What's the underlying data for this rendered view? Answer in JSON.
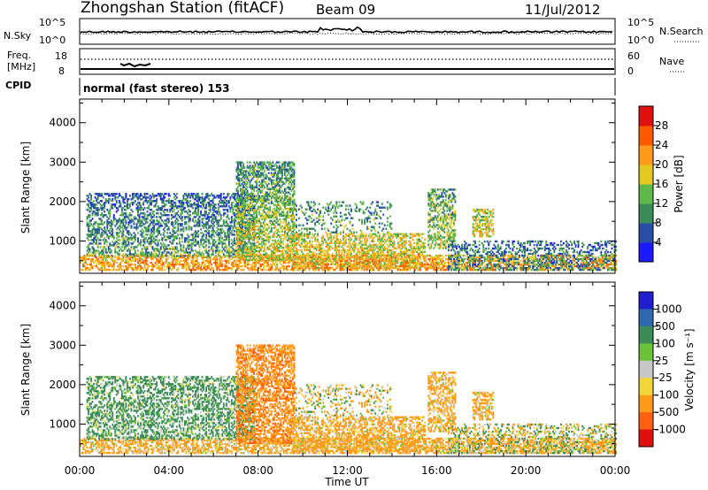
{
  "header": {
    "station": "Zhongshan Station (fitACF)",
    "beam": "Beam 09",
    "date": "11/Jul/2012"
  },
  "strip_panels": {
    "nsky_label": "N.Sky",
    "nsearch_label": "N.Search",
    "nsky_ticks": [
      "10^5",
      "10^0"
    ],
    "nsearch_ticks": [
      "10^5",
      "10^0"
    ],
    "freq_label_line1": "Freq.",
    "freq_label_line2": "[MHz]",
    "freq_ticks": [
      "18",
      "8"
    ],
    "nave_label": "Nave",
    "nave_ticks": [
      "60",
      "0"
    ],
    "cpid_label": "CPID",
    "cpid_text": "normal (fast stereo) 153"
  },
  "colors": {
    "power_scale": [
      "#1a1aff",
      "#2a4fa8",
      "#3c8c5a",
      "#5fb84a",
      "#e2c820",
      "#ff9a1a",
      "#ff5a00",
      "#e01010"
    ],
    "velocity_scale": [
      "#1f1fd0",
      "#2f6ab0",
      "#3c8c5a",
      "#6cc23a",
      "#c8c8c8",
      "#f2d63a",
      "#ff9a1a",
      "#ff6010",
      "#e01010"
    ]
  },
  "chart_data": [
    {
      "type": "heatmap",
      "name_key": "power",
      "title": "",
      "xlabel": "Time UT",
      "ylabel": "Slant Range [km]",
      "xlim": [
        0,
        24
      ],
      "ylim": [
        180,
        4600
      ],
      "x_ticks": [
        "00:00",
        "04:00",
        "08:00",
        "12:00",
        "16:00",
        "20:00",
        "00:00"
      ],
      "y_ticks": [
        "1000",
        "2000",
        "3000",
        "4000"
      ],
      "colorbar_label": "Power [dB]",
      "colorbar_ticks": [
        "4",
        "8",
        "12",
        "16",
        "20",
        "24",
        "28"
      ],
      "colorbar_range": [
        0,
        32
      ]
    },
    {
      "type": "heatmap",
      "name_key": "velocity",
      "title": "",
      "xlabel": "Time UT",
      "ylabel": "Slant Range [km]",
      "xlim": [
        0,
        24
      ],
      "ylim": [
        180,
        4600
      ],
      "x_ticks": [
        "00:00",
        "04:00",
        "08:00",
        "12:00",
        "16:00",
        "20:00",
        "00:00"
      ],
      "y_ticks": [
        "1000",
        "2000",
        "3000",
        "4000"
      ],
      "colorbar_label": "Velocity [m s⁻¹]",
      "colorbar_ticks": [
        "1000",
        "500",
        "100",
        "25",
        "-25",
        "-100",
        "-500",
        "-1000"
      ]
    }
  ],
  "echo_regions": [
    {
      "t0": 0.0,
      "t1": 24.0,
      "r0": 250,
      "r1": 650,
      "density": 0.55,
      "p": 22,
      "v": -200
    },
    {
      "t0": 0.3,
      "t1": 7.8,
      "r0": 600,
      "r1": 2200,
      "density": 0.45,
      "p": 12,
      "v": 200
    },
    {
      "t0": 7.0,
      "t1": 9.6,
      "r0": 500,
      "r1": 3000,
      "density": 0.55,
      "p": 18,
      "v": -400
    },
    {
      "t0": 9.5,
      "t1": 15.5,
      "r0": 300,
      "r1": 1200,
      "density": 0.5,
      "p": 20,
      "v": -200
    },
    {
      "t0": 9.5,
      "t1": 14.0,
      "r0": 1200,
      "r1": 2000,
      "density": 0.18,
      "p": 12,
      "v": -50
    },
    {
      "t0": 15.6,
      "t1": 16.8,
      "r0": 800,
      "r1": 2300,
      "density": 0.5,
      "p": 16,
      "v": -200
    },
    {
      "t0": 17.6,
      "t1": 18.5,
      "r0": 1100,
      "r1": 1800,
      "density": 0.5,
      "p": 18,
      "v": -200
    },
    {
      "t0": 16.5,
      "t1": 24.0,
      "r0": 250,
      "r1": 1000,
      "density": 0.35,
      "p": 10,
      "v": 0
    }
  ]
}
